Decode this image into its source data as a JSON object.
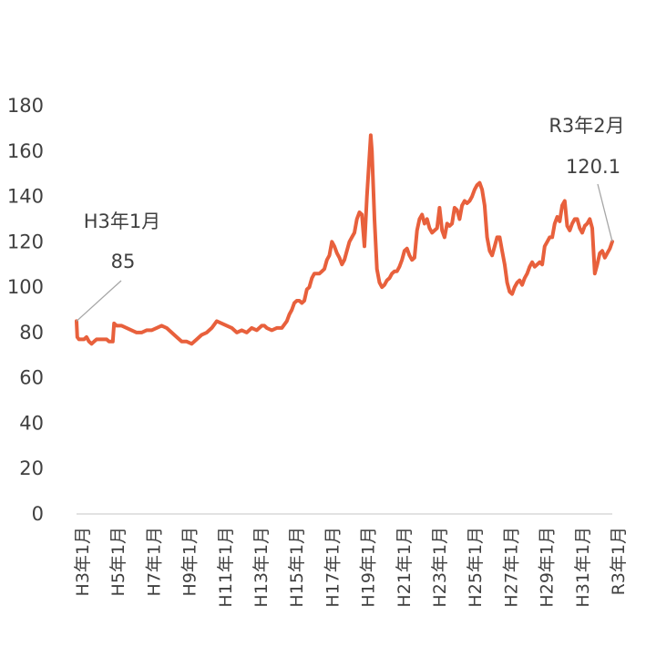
{
  "chart_data": {
    "type": "line",
    "title": "",
    "xlabel": "",
    "ylabel": "",
    "ylim": [
      0,
      180
    ],
    "yticks": [
      0,
      20,
      40,
      60,
      80,
      100,
      120,
      140,
      160,
      180
    ],
    "grid": false,
    "legend": "none",
    "x_start": "H3年1月",
    "x_end": "R3年2月",
    "xtick_labels": [
      "H3年1月",
      "H5年1月",
      "H7年1月",
      "H9年1月",
      "H11年1月",
      "H13年1月",
      "H15年1月",
      "H17年1月",
      "H19年1月",
      "H21年1月",
      "H23年1月",
      "H25年1月",
      "H27年1月",
      "H29年1月",
      "H31年1月",
      "R3年1月"
    ],
    "series": [
      {
        "name": "",
        "color": "#E8603C",
        "points": [
          [
            0,
            85
          ],
          [
            0.3,
            78
          ],
          [
            1,
            77
          ],
          [
            3,
            77
          ],
          [
            4,
            78
          ],
          [
            5,
            76
          ],
          [
            6,
            75
          ],
          [
            7,
            76
          ],
          [
            8,
            77
          ],
          [
            10,
            77
          ],
          [
            12,
            77
          ],
          [
            13,
            76
          ],
          [
            14.5,
            76
          ],
          [
            15,
            84
          ],
          [
            16,
            83
          ],
          [
            18,
            83
          ],
          [
            20,
            82
          ],
          [
            22,
            81
          ],
          [
            24,
            80
          ],
          [
            26,
            80
          ],
          [
            28,
            81
          ],
          [
            30,
            81
          ],
          [
            32,
            82
          ],
          [
            34,
            83
          ],
          [
            36,
            82
          ],
          [
            38,
            80
          ],
          [
            40,
            78
          ],
          [
            42,
            76
          ],
          [
            44,
            76
          ],
          [
            46,
            75
          ],
          [
            48,
            77
          ],
          [
            50,
            79
          ],
          [
            52,
            80
          ],
          [
            54,
            82
          ],
          [
            56,
            85
          ],
          [
            58,
            84
          ],
          [
            60,
            83
          ],
          [
            62,
            82
          ],
          [
            64,
            80
          ],
          [
            66,
            81
          ],
          [
            68,
            80
          ],
          [
            70,
            82
          ],
          [
            72,
            81
          ],
          [
            74,
            83
          ],
          [
            75,
            83
          ],
          [
            76,
            82
          ],
          [
            78,
            81
          ],
          [
            80,
            82
          ],
          [
            82,
            82
          ],
          [
            84,
            85
          ],
          [
            85,
            88
          ],
          [
            86,
            90
          ],
          [
            87,
            93
          ],
          [
            88,
            94
          ],
          [
            89,
            94
          ],
          [
            90,
            93
          ],
          [
            91,
            94
          ],
          [
            92,
            99
          ],
          [
            93,
            100
          ],
          [
            94,
            104
          ],
          [
            95,
            106
          ],
          [
            96,
            106
          ],
          [
            97,
            106
          ],
          [
            98,
            107
          ],
          [
            99,
            108
          ],
          [
            100,
            112
          ],
          [
            101,
            114
          ],
          [
            102,
            120
          ],
          [
            103,
            118
          ],
          [
            104,
            115
          ],
          [
            105,
            113
          ],
          [
            106,
            110
          ],
          [
            107,
            112
          ],
          [
            108,
            116
          ],
          [
            109,
            120
          ],
          [
            110,
            122
          ],
          [
            111,
            124
          ],
          [
            112,
            130
          ],
          [
            113,
            133
          ],
          [
            114,
            132
          ],
          [
            115,
            118
          ],
          [
            116,
            140
          ],
          [
            117,
            158
          ],
          [
            117.5,
            167
          ],
          [
            118,
            160
          ],
          [
            119,
            130
          ],
          [
            120,
            108
          ],
          [
            121,
            102
          ],
          [
            122,
            100
          ],
          [
            123,
            101
          ],
          [
            124,
            103
          ],
          [
            125,
            104
          ],
          [
            126,
            106
          ],
          [
            127,
            107
          ],
          [
            128,
            107
          ],
          [
            129,
            109
          ],
          [
            130,
            112
          ],
          [
            131,
            116
          ],
          [
            132,
            117
          ],
          [
            133,
            114
          ],
          [
            134,
            112
          ],
          [
            135,
            113
          ],
          [
            136,
            125
          ],
          [
            137,
            130
          ],
          [
            138,
            132
          ],
          [
            139,
            128
          ],
          [
            140,
            130
          ],
          [
            141,
            126
          ],
          [
            142,
            124
          ],
          [
            143,
            125
          ],
          [
            144,
            126
          ],
          [
            145,
            135
          ],
          [
            146,
            125
          ],
          [
            147,
            122
          ],
          [
            148,
            128
          ],
          [
            149,
            127
          ],
          [
            150,
            128
          ],
          [
            151,
            135
          ],
          [
            152,
            134
          ],
          [
            153,
            130
          ],
          [
            154,
            136
          ],
          [
            155,
            138
          ],
          [
            156,
            137
          ],
          [
            157,
            138
          ],
          [
            158,
            140
          ],
          [
            159,
            143
          ],
          [
            160,
            145
          ],
          [
            161,
            146
          ],
          [
            162,
            143
          ],
          [
            163,
            136
          ],
          [
            164,
            122
          ],
          [
            165,
            116
          ],
          [
            166,
            114
          ],
          [
            167,
            118
          ],
          [
            168,
            122
          ],
          [
            169,
            122
          ],
          [
            170,
            116
          ],
          [
            171,
            110
          ],
          [
            172,
            102
          ],
          [
            173,
            98
          ],
          [
            174,
            97
          ],
          [
            175,
            100
          ],
          [
            176,
            102
          ],
          [
            177,
            103
          ],
          [
            178,
            101
          ],
          [
            179,
            104
          ],
          [
            180,
            106
          ],
          [
            181,
            109
          ],
          [
            182,
            111
          ],
          [
            183,
            109
          ],
          [
            184,
            110
          ],
          [
            185,
            111
          ],
          [
            186,
            110
          ],
          [
            187,
            118
          ],
          [
            188,
            120
          ],
          [
            189,
            122
          ],
          [
            190,
            122
          ],
          [
            191,
            128
          ],
          [
            192,
            131
          ],
          [
            193,
            129
          ],
          [
            194,
            136
          ],
          [
            195,
            138
          ],
          [
            196,
            127
          ],
          [
            197,
            125
          ],
          [
            198,
            128
          ],
          [
            199,
            130
          ],
          [
            200,
            130
          ],
          [
            201,
            126
          ],
          [
            202,
            124
          ],
          [
            203,
            127
          ],
          [
            204,
            128
          ],
          [
            205,
            130
          ],
          [
            206,
            126
          ],
          [
            207,
            106
          ],
          [
            208,
            110
          ],
          [
            209,
            115
          ],
          [
            210,
            116
          ],
          [
            211,
            113
          ],
          [
            212,
            115
          ],
          [
            213,
            117
          ],
          [
            214,
            120.1
          ]
        ]
      }
    ],
    "annotations": [
      {
        "label": "H3年1月",
        "value": "85"
      },
      {
        "label": "R3年2月",
        "value": "120.1"
      }
    ]
  }
}
